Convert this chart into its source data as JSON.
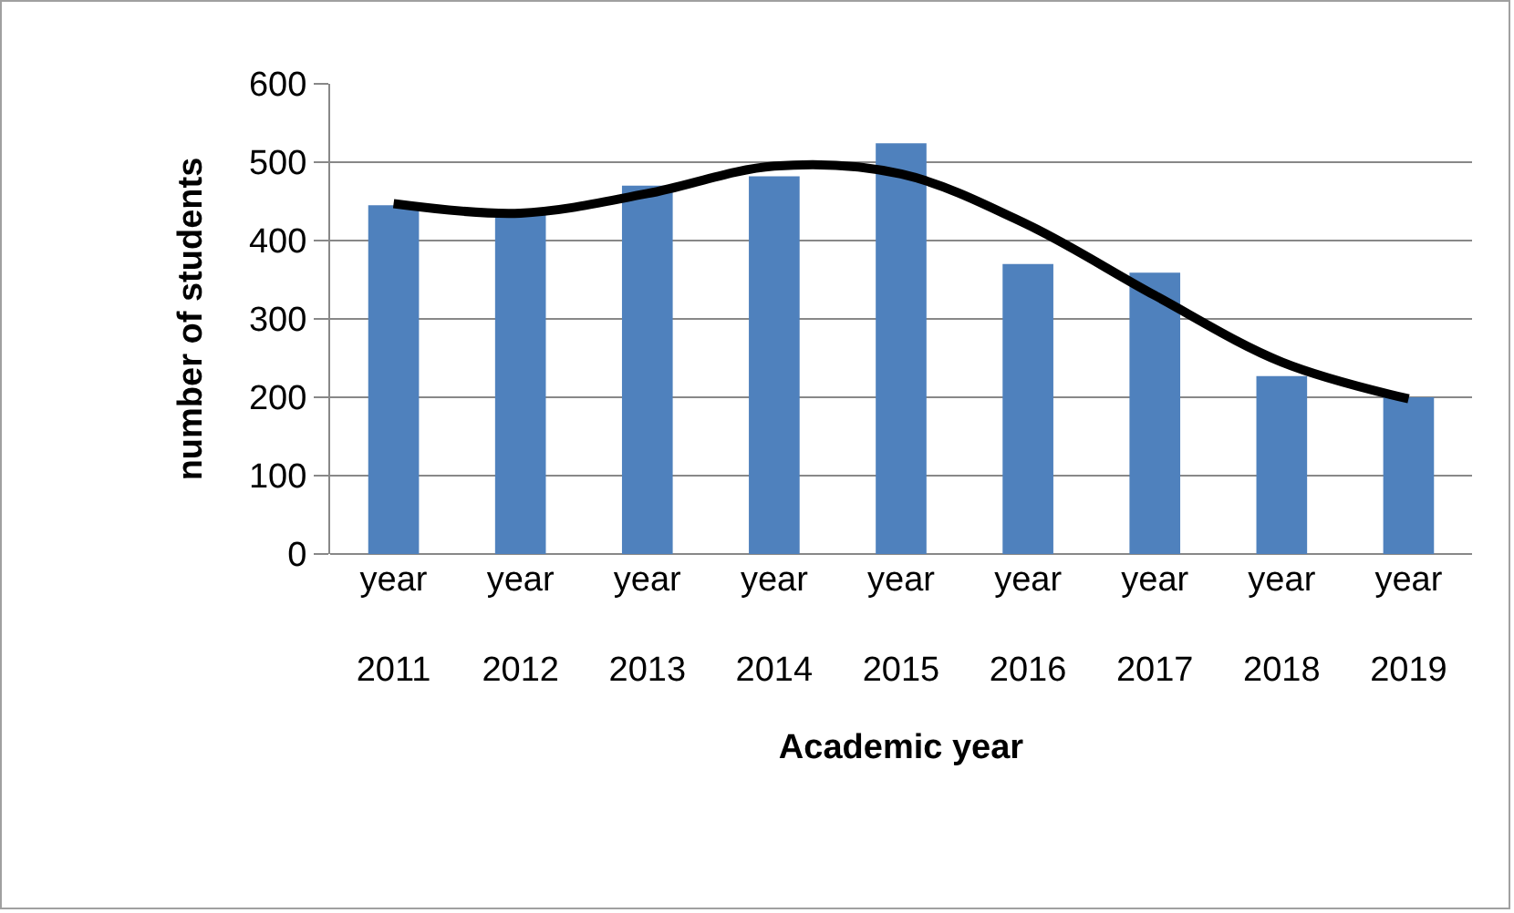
{
  "chart_data": {
    "type": "bar",
    "xlabel": "Academic year",
    "ylabel": "number of students",
    "categories": [
      "year 2011",
      "year 2012",
      "year 2013",
      "year 2014",
      "year 2015",
      "year 2016",
      "year 2017",
      "year 2018",
      "year 2019"
    ],
    "series": [
      {
        "color": "#4f81bd",
        "values": [
          445,
          435,
          470,
          482,
          524,
          370,
          359,
          227,
          200
        ]
      },
      {
        "type": "line",
        "color": "#000000",
        "values": [
          447,
          435,
          460,
          495,
          485,
          420,
          330,
          245,
          198
        ]
      }
    ],
    "ylim": [
      0,
      600
    ],
    "yticks": [
      0,
      100,
      200,
      300,
      400,
      500,
      600
    ],
    "grid": "y"
  }
}
